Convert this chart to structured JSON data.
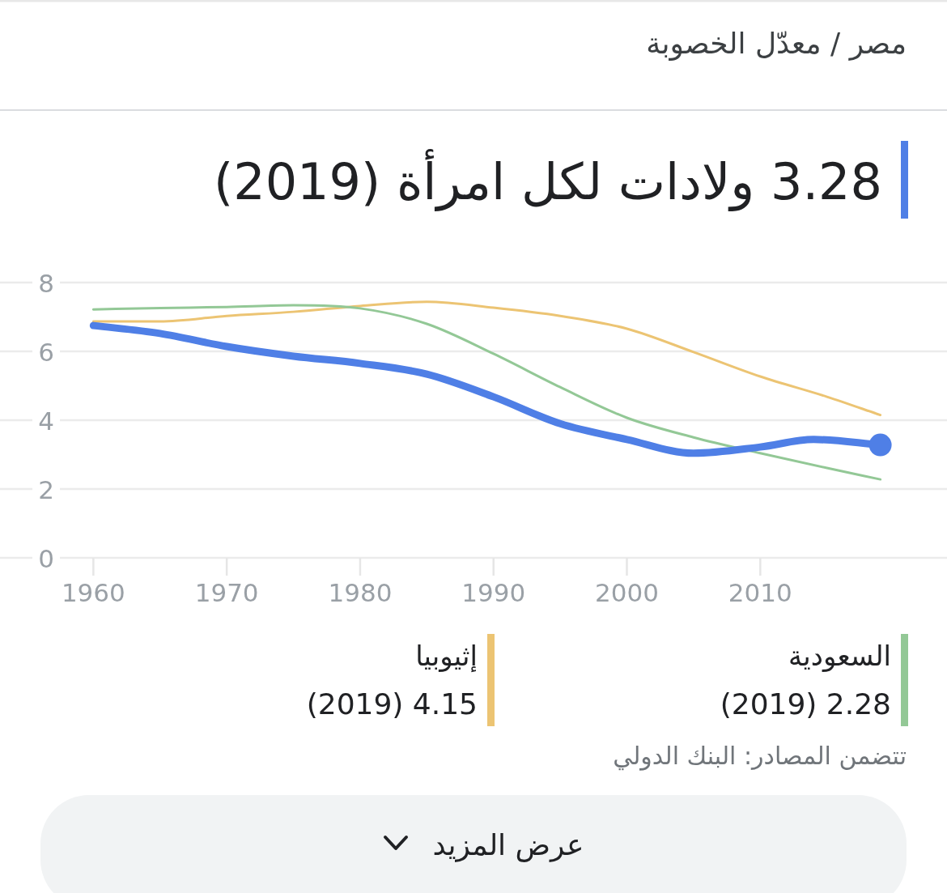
{
  "chart_data": {
    "type": "line",
    "title": "مصر / معدّل الخصوبة",
    "subtitle": "3.28 ولادات لكل امرأة (2019)",
    "x": [
      1960,
      1965,
      1970,
      1975,
      1980,
      1985,
      1990,
      1995,
      2000,
      2005,
      2010,
      2014,
      2019
    ],
    "series": [
      {
        "color": "#4f7fe6",
        "values": [
          6.75,
          6.52,
          6.14,
          5.86,
          5.65,
          5.34,
          4.68,
          3.9,
          3.44,
          3.04,
          3.22,
          3.44,
          3.28
        ]
      },
      {
        "name": "السعودية",
        "color": "#93c896",
        "x": [
          1960,
          1965,
          1970,
          1975,
          1980,
          1985,
          1990,
          1995,
          2000,
          2005,
          2010,
          2015,
          2019
        ],
        "values": [
          7.22,
          7.26,
          7.29,
          7.34,
          7.25,
          6.8,
          5.93,
          4.96,
          4.07,
          3.5,
          3.04,
          2.61,
          2.28
        ]
      },
      {
        "name": "إثيوبيا",
        "color": "#ecc473",
        "x": [
          1960,
          1965,
          1970,
          1975,
          1980,
          1985,
          1990,
          1995,
          2000,
          2005,
          2010,
          2015,
          2019
        ],
        "values": [
          6.87,
          6.87,
          7.03,
          7.15,
          7.32,
          7.44,
          7.27,
          7.03,
          6.66,
          5.98,
          5.27,
          4.68,
          4.15
        ]
      }
    ],
    "xlim": [
      1953,
      2024
    ],
    "ylim": [
      0,
      8
    ],
    "xticks": [
      1960,
      1970,
      1980,
      1990,
      2000,
      2010
    ],
    "yticks": [
      0,
      2,
      4,
      6,
      8
    ],
    "grid": "y",
    "legend": "bottom",
    "annotations": [
      "(2019) 2.28",
      "(2019) 4.15",
      "تتضمن المصادر: البنك الدولي",
      "عرض المزيد"
    ]
  }
}
